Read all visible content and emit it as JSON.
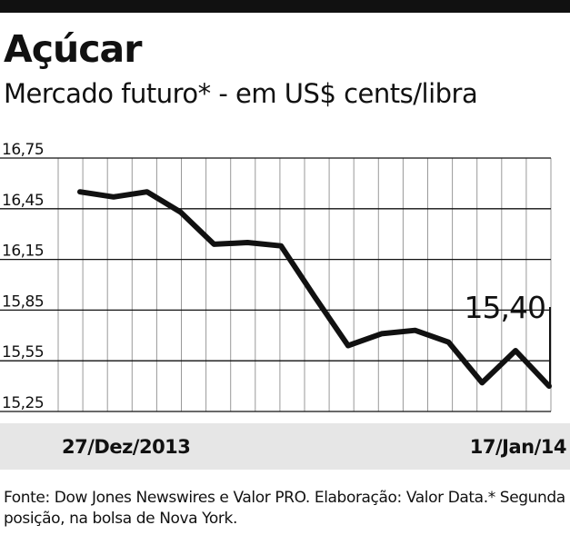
{
  "title": "Açúcar",
  "subtitle": "Mercado futuro* - em US$ cents/libra",
  "source": "Fonte: Dow Jones Newswires e Valor PRO. Elaboração: Valor Data.* Segunda posição, na bolsa de Nova York.",
  "colors": {
    "line": "#111111",
    "grid": "#999999",
    "strip": "#e6e6e6"
  },
  "chart_data": {
    "type": "line",
    "title": "Açúcar",
    "subtitle": "Mercado futuro* - em US$ cents/libra",
    "ylabel": "",
    "xlabel": "",
    "ylim": [
      15.25,
      16.75
    ],
    "yticks": [
      "16,75",
      "16,45",
      "16,15",
      "15,85",
      "15,55",
      "15,25"
    ],
    "ytick_values": [
      16.75,
      16.45,
      16.15,
      15.85,
      15.55,
      15.25
    ],
    "x_start_label": "27/Dez/2013",
    "x_end_label": "17/Jan/14",
    "grid": true,
    "series": [
      {
        "values": [
          16.55,
          16.52,
          16.55,
          16.43,
          16.24,
          16.25,
          16.23,
          15.93,
          15.64,
          15.71,
          15.73,
          15.66,
          15.42,
          15.61,
          15.4
        ]
      }
    ],
    "last_value_label": "15,40"
  }
}
